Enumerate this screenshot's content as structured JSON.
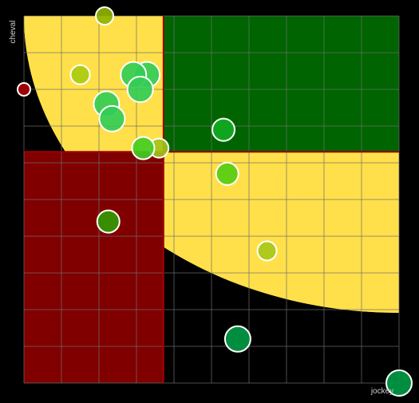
{
  "chart_data": {
    "type": "scatter",
    "title": "",
    "xlabel": "jockey",
    "ylabel": "cheval",
    "xlim": [
      0,
      10
    ],
    "ylim": [
      0,
      10
    ],
    "grid": true,
    "background": "#000000",
    "grid_color": "#6e6e6e",
    "zones": {
      "top_right_color": "#006400",
      "bottom_left_color": "#800000",
      "curve_fill_color": "#ffe04a",
      "divider_color": "#a00000",
      "divider_x": 3.72,
      "divider_y": 6.3
    },
    "points": [
      {
        "x": 2.15,
        "y": 10.0,
        "r": 11,
        "color": "#8fb300"
      },
      {
        "x": 1.5,
        "y": 8.4,
        "r": 12,
        "color": "#aacc10"
      },
      {
        "x": 0.0,
        "y": 8.0,
        "r": 8,
        "color": "#aa0000"
      },
      {
        "x": 3.28,
        "y": 8.4,
        "r": 16,
        "color": "#33cc55"
      },
      {
        "x": 2.92,
        "y": 8.4,
        "r": 16,
        "color": "#33cc55"
      },
      {
        "x": 3.1,
        "y": 8.0,
        "r": 16,
        "color": "#33cc55"
      },
      {
        "x": 2.2,
        "y": 7.6,
        "r": 16,
        "color": "#33cc55"
      },
      {
        "x": 2.35,
        "y": 7.2,
        "r": 16,
        "color": "#33cc55"
      },
      {
        "x": 3.6,
        "y": 6.4,
        "r": 12,
        "color": "#a3c21a"
      },
      {
        "x": 3.18,
        "y": 6.4,
        "r": 14,
        "color": "#44cc22"
      },
      {
        "x": 5.32,
        "y": 6.9,
        "r": 14,
        "color": "#11aa22"
      },
      {
        "x": 5.42,
        "y": 5.7,
        "r": 14,
        "color": "#55cc11"
      },
      {
        "x": 2.25,
        "y": 4.4,
        "r": 14,
        "color": "#339900"
      },
      {
        "x": 6.48,
        "y": 3.6,
        "r": 12,
        "color": "#a8c81a"
      },
      {
        "x": 5.7,
        "y": 1.2,
        "r": 16,
        "color": "#009944"
      },
      {
        "x": 10.0,
        "y": 0.0,
        "r": 16,
        "color": "#009944"
      }
    ]
  }
}
